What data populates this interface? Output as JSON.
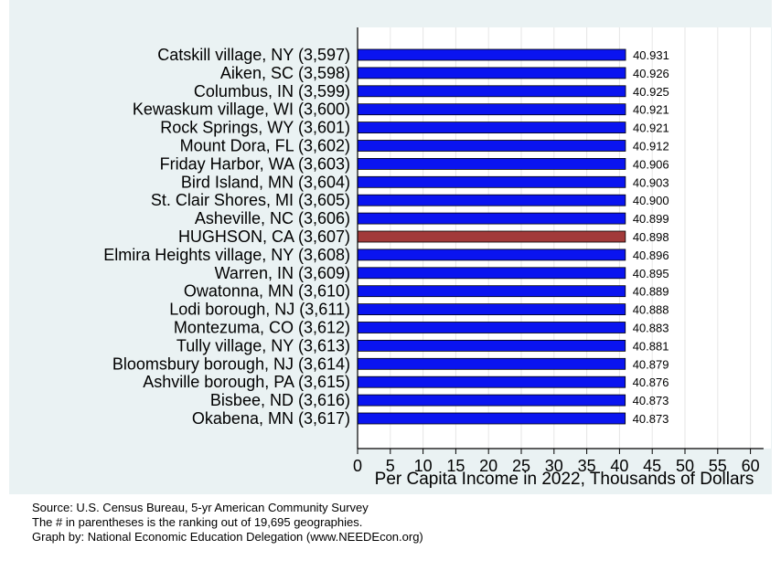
{
  "chart_data": {
    "type": "bar",
    "orientation": "horizontal",
    "categories": [
      "Catskill village, NY (3,597)",
      "Aiken, SC (3,598)",
      "Columbus, IN (3,599)",
      "Kewaskum village, WI (3,600)",
      "Rock Springs, WY (3,601)",
      "Mount Dora, FL (3,602)",
      "Friday Harbor, WA (3,603)",
      "Bird Island, MN (3,604)",
      "St. Clair Shores, MI (3,605)",
      "Asheville, NC (3,606)",
      "HUGHSON, CA (3,607)",
      "Elmira Heights village, NY (3,608)",
      "Warren, IN (3,609)",
      "Owatonna, MN (3,610)",
      "Lodi borough, NJ (3,611)",
      "Montezuma, CO (3,612)",
      "Tully village, NY (3,613)",
      "Bloomsbury borough, NJ (3,614)",
      "Ashville borough, PA (3,615)",
      "Bisbee, ND (3,616)",
      "Okabena, MN (3,617)"
    ],
    "values": [
      40.931,
      40.926,
      40.925,
      40.921,
      40.921,
      40.912,
      40.906,
      40.903,
      40.9,
      40.899,
      40.898,
      40.896,
      40.895,
      40.889,
      40.888,
      40.883,
      40.881,
      40.879,
      40.876,
      40.873,
      40.873
    ],
    "value_labels": [
      "40.931",
      "40.926",
      "40.925",
      "40.921",
      "40.921",
      "40.912",
      "40.906",
      "40.903",
      "40.900",
      "40.899",
      "40.898",
      "40.896",
      "40.895",
      "40.889",
      "40.888",
      "40.883",
      "40.881",
      "40.879",
      "40.876",
      "40.873",
      "40.873"
    ],
    "highlight_index": 10,
    "xlabel": "Per Capita Income in 2022, Thousands of Dollars",
    "xlim": [
      0,
      62
    ],
    "xticks": [
      0,
      5,
      10,
      15,
      20,
      25,
      30,
      35,
      40,
      45,
      50,
      55,
      60
    ],
    "grid": true,
    "colors": {
      "bar": "#0a14f0",
      "highlight": "#a23a3a",
      "panel_background": "#eaf2f3",
      "plot_background": "#ffffff",
      "grid": "#e6e6e6"
    }
  },
  "notes": [
    "Source: U.S. Census Bureau, 5-yr American Community Survey",
    "The # in parentheses is the ranking out of 19,695 geographies.",
    "Graph by: National Economic Education Delegation (www.NEEDEcon.org)"
  ]
}
